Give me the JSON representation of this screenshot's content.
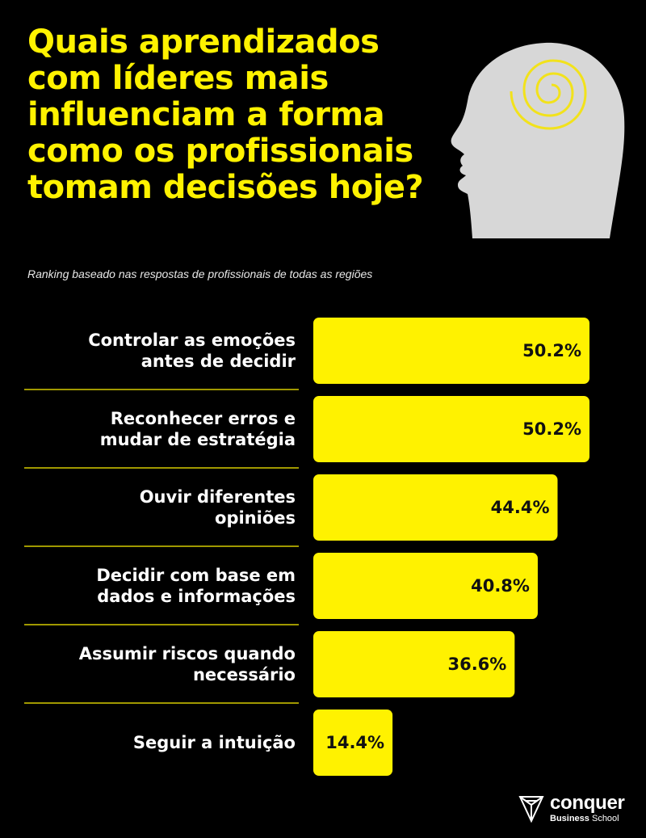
{
  "header": {
    "title": "Quais aprendizados com líderes mais influenciam a forma como os profissionais tomam decisões hoje?",
    "subtitle": "Ranking baseado nas respostas de profissionais de todas as regiões"
  },
  "brand": {
    "name": "conquer",
    "sub_bold": "Business",
    "sub_rest": " School",
    "accent": "#FFF200",
    "background": "#000000",
    "head_color": "#D7D7D7"
  },
  "chart_data": {
    "type": "bar",
    "orientation": "horizontal",
    "categories": [
      [
        "Controlar as emoções",
        "antes de decidir"
      ],
      [
        "Reconhecer erros e",
        "mudar de estratégia"
      ],
      [
        "Ouvir diferentes",
        "opiniões"
      ],
      [
        "Decidir com base em",
        "dados e informações"
      ],
      [
        "Assumir riscos quando",
        "necessário"
      ],
      [
        "Seguir a intuição"
      ]
    ],
    "values": [
      50.2,
      50.2,
      44.4,
      40.8,
      36.6,
      14.4
    ],
    "value_labels": [
      "50.2%",
      "50.2%",
      "44.4%",
      "40.8%",
      "36.6%",
      "14.4%"
    ],
    "bar_color": "#FFF200",
    "xlim": [
      0,
      50.2
    ],
    "grid": false,
    "legend": "none"
  }
}
